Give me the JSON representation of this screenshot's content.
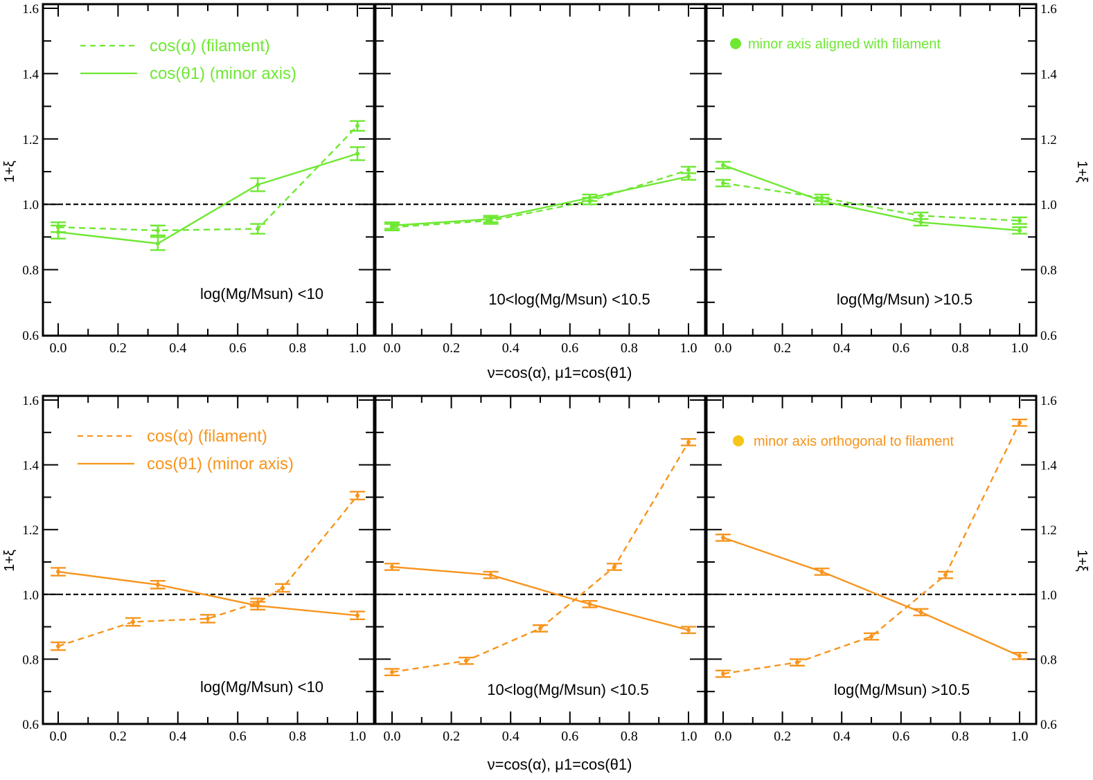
{
  "figure": {
    "ylabel": "1+ξ",
    "xlabel_top": "ν=cos(α), μ1=cos(θ1)",
    "xlabel_bottom": "ν=cos(α), μ1=cos(θ1)"
  },
  "rows": [
    {
      "color": "#6ee832",
      "legend": {
        "dashed_label": "cos(α)  (filament)",
        "solid_label": "cos(θ1) (minor axis)"
      },
      "annotation": "minor axis aligned with filament",
      "dot_color": "#6ee832"
    },
    {
      "color": "#f7941d",
      "legend": {
        "dashed_label": "cos(α)  (filament)",
        "solid_label": "cos(θ1) (minor axis)"
      },
      "annotation": "minor axis orthogonal to filament",
      "dot_color": "#f5c518"
    }
  ],
  "panel_labels": [
    "log(Mg/Msun) <10",
    "10<log(Mg/Msun) <10.5",
    "log(Mg/Msun) >10.5"
  ],
  "chart_data": [
    {
      "type": "line",
      "row": 0,
      "col": 0,
      "title": "log(Mg/Msun) <10",
      "xlim": [
        0,
        1
      ],
      "ylim": [
        0.6,
        1.6
      ],
      "reference_line": 1.0,
      "grid": false,
      "xticks": [
        "0.0",
        "0.2",
        "0.4",
        "0.6",
        "0.8",
        "1.0"
      ],
      "yticks": [
        "0.6",
        "0.8",
        "1.0",
        "1.2",
        "1.4",
        "1.6"
      ],
      "series": [
        {
          "name": "cos(α)  (filament)",
          "style": "dashed",
          "x": [
            0,
            0.333,
            0.667,
            1.0
          ],
          "y": [
            0.93,
            0.92,
            0.925,
            1.24
          ],
          "err": [
            0.015,
            0.015,
            0.015,
            0.015
          ]
        },
        {
          "name": "cos(θ1) (minor axis)",
          "style": "solid",
          "x": [
            0,
            0.333,
            0.667,
            1.0
          ],
          "y": [
            0.915,
            0.88,
            1.06,
            1.155
          ],
          "err": [
            0.02,
            0.02,
            0.02,
            0.02
          ]
        }
      ]
    },
    {
      "type": "line",
      "row": 0,
      "col": 1,
      "title": "10<log(Mg/Msun) <10.5",
      "xlim": [
        0,
        1
      ],
      "ylim": [
        0.6,
        1.6
      ],
      "reference_line": 1.0,
      "grid": false,
      "xticks": [
        "0.0",
        "0.2",
        "0.4",
        "0.6",
        "0.8",
        "1.0"
      ],
      "yticks": [],
      "series": [
        {
          "name": "cos(α)  (filament)",
          "style": "dashed",
          "x": [
            0,
            0.333,
            0.667,
            1.0
          ],
          "y": [
            0.93,
            0.95,
            1.01,
            1.105
          ],
          "err": [
            0.01,
            0.01,
            0.01,
            0.01
          ]
        },
        {
          "name": "cos(θ1) (minor axis)",
          "style": "solid",
          "x": [
            0,
            0.333,
            0.667,
            1.0
          ],
          "y": [
            0.935,
            0.955,
            1.02,
            1.085
          ],
          "err": [
            0.01,
            0.01,
            0.01,
            0.01
          ]
        }
      ]
    },
    {
      "type": "line",
      "row": 0,
      "col": 2,
      "title": "log(Mg/Msun) >10.5",
      "xlim": [
        0,
        1
      ],
      "ylim": [
        0.6,
        1.6
      ],
      "reference_line": 1.0,
      "grid": false,
      "xticks": [
        "0.0",
        "0.2",
        "0.4",
        "0.6",
        "0.8",
        "1.0"
      ],
      "yticks": [
        "0.6",
        "0.8",
        "1.0",
        "1.2",
        "1.4",
        "1.6"
      ],
      "series": [
        {
          "name": "cos(α)  (filament)",
          "style": "dashed",
          "x": [
            0,
            0.333,
            0.667,
            1.0
          ],
          "y": [
            1.065,
            1.02,
            0.965,
            0.95
          ],
          "err": [
            0.01,
            0.01,
            0.01,
            0.01
          ]
        },
        {
          "name": "cos(θ1) (minor axis)",
          "style": "solid",
          "x": [
            0,
            0.333,
            0.667,
            1.0
          ],
          "y": [
            1.12,
            1.01,
            0.945,
            0.92
          ],
          "err": [
            0.01,
            0.01,
            0.01,
            0.01
          ]
        }
      ]
    },
    {
      "type": "line",
      "row": 1,
      "col": 0,
      "title": "log(Mg/Msun) <10",
      "xlim": [
        0,
        1
      ],
      "ylim": [
        0.6,
        1.6
      ],
      "reference_line": 1.0,
      "grid": false,
      "xticks": [
        "0.0",
        "0.2",
        "0.4",
        "0.6",
        "0.8",
        "1.0"
      ],
      "yticks": [
        "0.6",
        "0.8",
        "1.0",
        "1.2",
        "1.4",
        "1.6"
      ],
      "series": [
        {
          "name": "cos(α)  (filament)",
          "style": "dashed",
          "x": [
            0,
            0.25,
            0.5,
            0.667,
            0.75,
            1.0
          ],
          "y": [
            0.84,
            0.915,
            0.925,
            0.975,
            1.02,
            1.305
          ],
          "err": [
            0.012,
            0.012,
            0.012,
            0.012,
            0.012,
            0.012
          ]
        },
        {
          "name": "cos(θ1) (minor axis)",
          "style": "solid",
          "x": [
            0,
            0.333,
            0.667,
            1.0
          ],
          "y": [
            1.07,
            1.03,
            0.965,
            0.935
          ],
          "err": [
            0.012,
            0.012,
            0.012,
            0.012
          ]
        }
      ]
    },
    {
      "type": "line",
      "row": 1,
      "col": 1,
      "title": "10<log(Mg/Msun) <10.5",
      "xlim": [
        0,
        1
      ],
      "ylim": [
        0.6,
        1.6
      ],
      "reference_line": 1.0,
      "grid": false,
      "xticks": [
        "0.0",
        "0.2",
        "0.4",
        "0.6",
        "0.8",
        "1.0"
      ],
      "yticks": [],
      "series": [
        {
          "name": "cos(α)  (filament)",
          "style": "dashed",
          "x": [
            0,
            0.25,
            0.5,
            0.75,
            1.0
          ],
          "y": [
            0.76,
            0.795,
            0.895,
            1.085,
            1.47
          ],
          "err": [
            0.01,
            0.01,
            0.01,
            0.01,
            0.01
          ]
        },
        {
          "name": "cos(θ1) (minor axis)",
          "style": "solid",
          "x": [
            0,
            0.333,
            0.667,
            1.0
          ],
          "y": [
            1.085,
            1.06,
            0.97,
            0.89
          ],
          "err": [
            0.01,
            0.01,
            0.01,
            0.01
          ]
        }
      ]
    },
    {
      "type": "line",
      "row": 1,
      "col": 2,
      "title": "log(Mg/Msun) >10.5",
      "xlim": [
        0,
        1
      ],
      "ylim": [
        0.6,
        1.6
      ],
      "reference_line": 1.0,
      "grid": false,
      "xticks": [
        "0.0",
        "0.2",
        "0.4",
        "0.6",
        "0.8",
        "1.0"
      ],
      "yticks": [
        "0.6",
        "0.8",
        "1.0",
        "1.2",
        "1.4",
        "1.6"
      ],
      "series": [
        {
          "name": "cos(α)  (filament)",
          "style": "dashed",
          "x": [
            0,
            0.25,
            0.5,
            0.75,
            1.0
          ],
          "y": [
            0.755,
            0.79,
            0.87,
            1.06,
            1.53
          ],
          "err": [
            0.01,
            0.01,
            0.01,
            0.01,
            0.01
          ]
        },
        {
          "name": "cos(θ1) (minor axis)",
          "style": "solid",
          "x": [
            0,
            0.333,
            0.667,
            1.0
          ],
          "y": [
            1.175,
            1.07,
            0.945,
            0.81
          ],
          "err": [
            0.01,
            0.01,
            0.01,
            0.01
          ]
        }
      ]
    }
  ]
}
